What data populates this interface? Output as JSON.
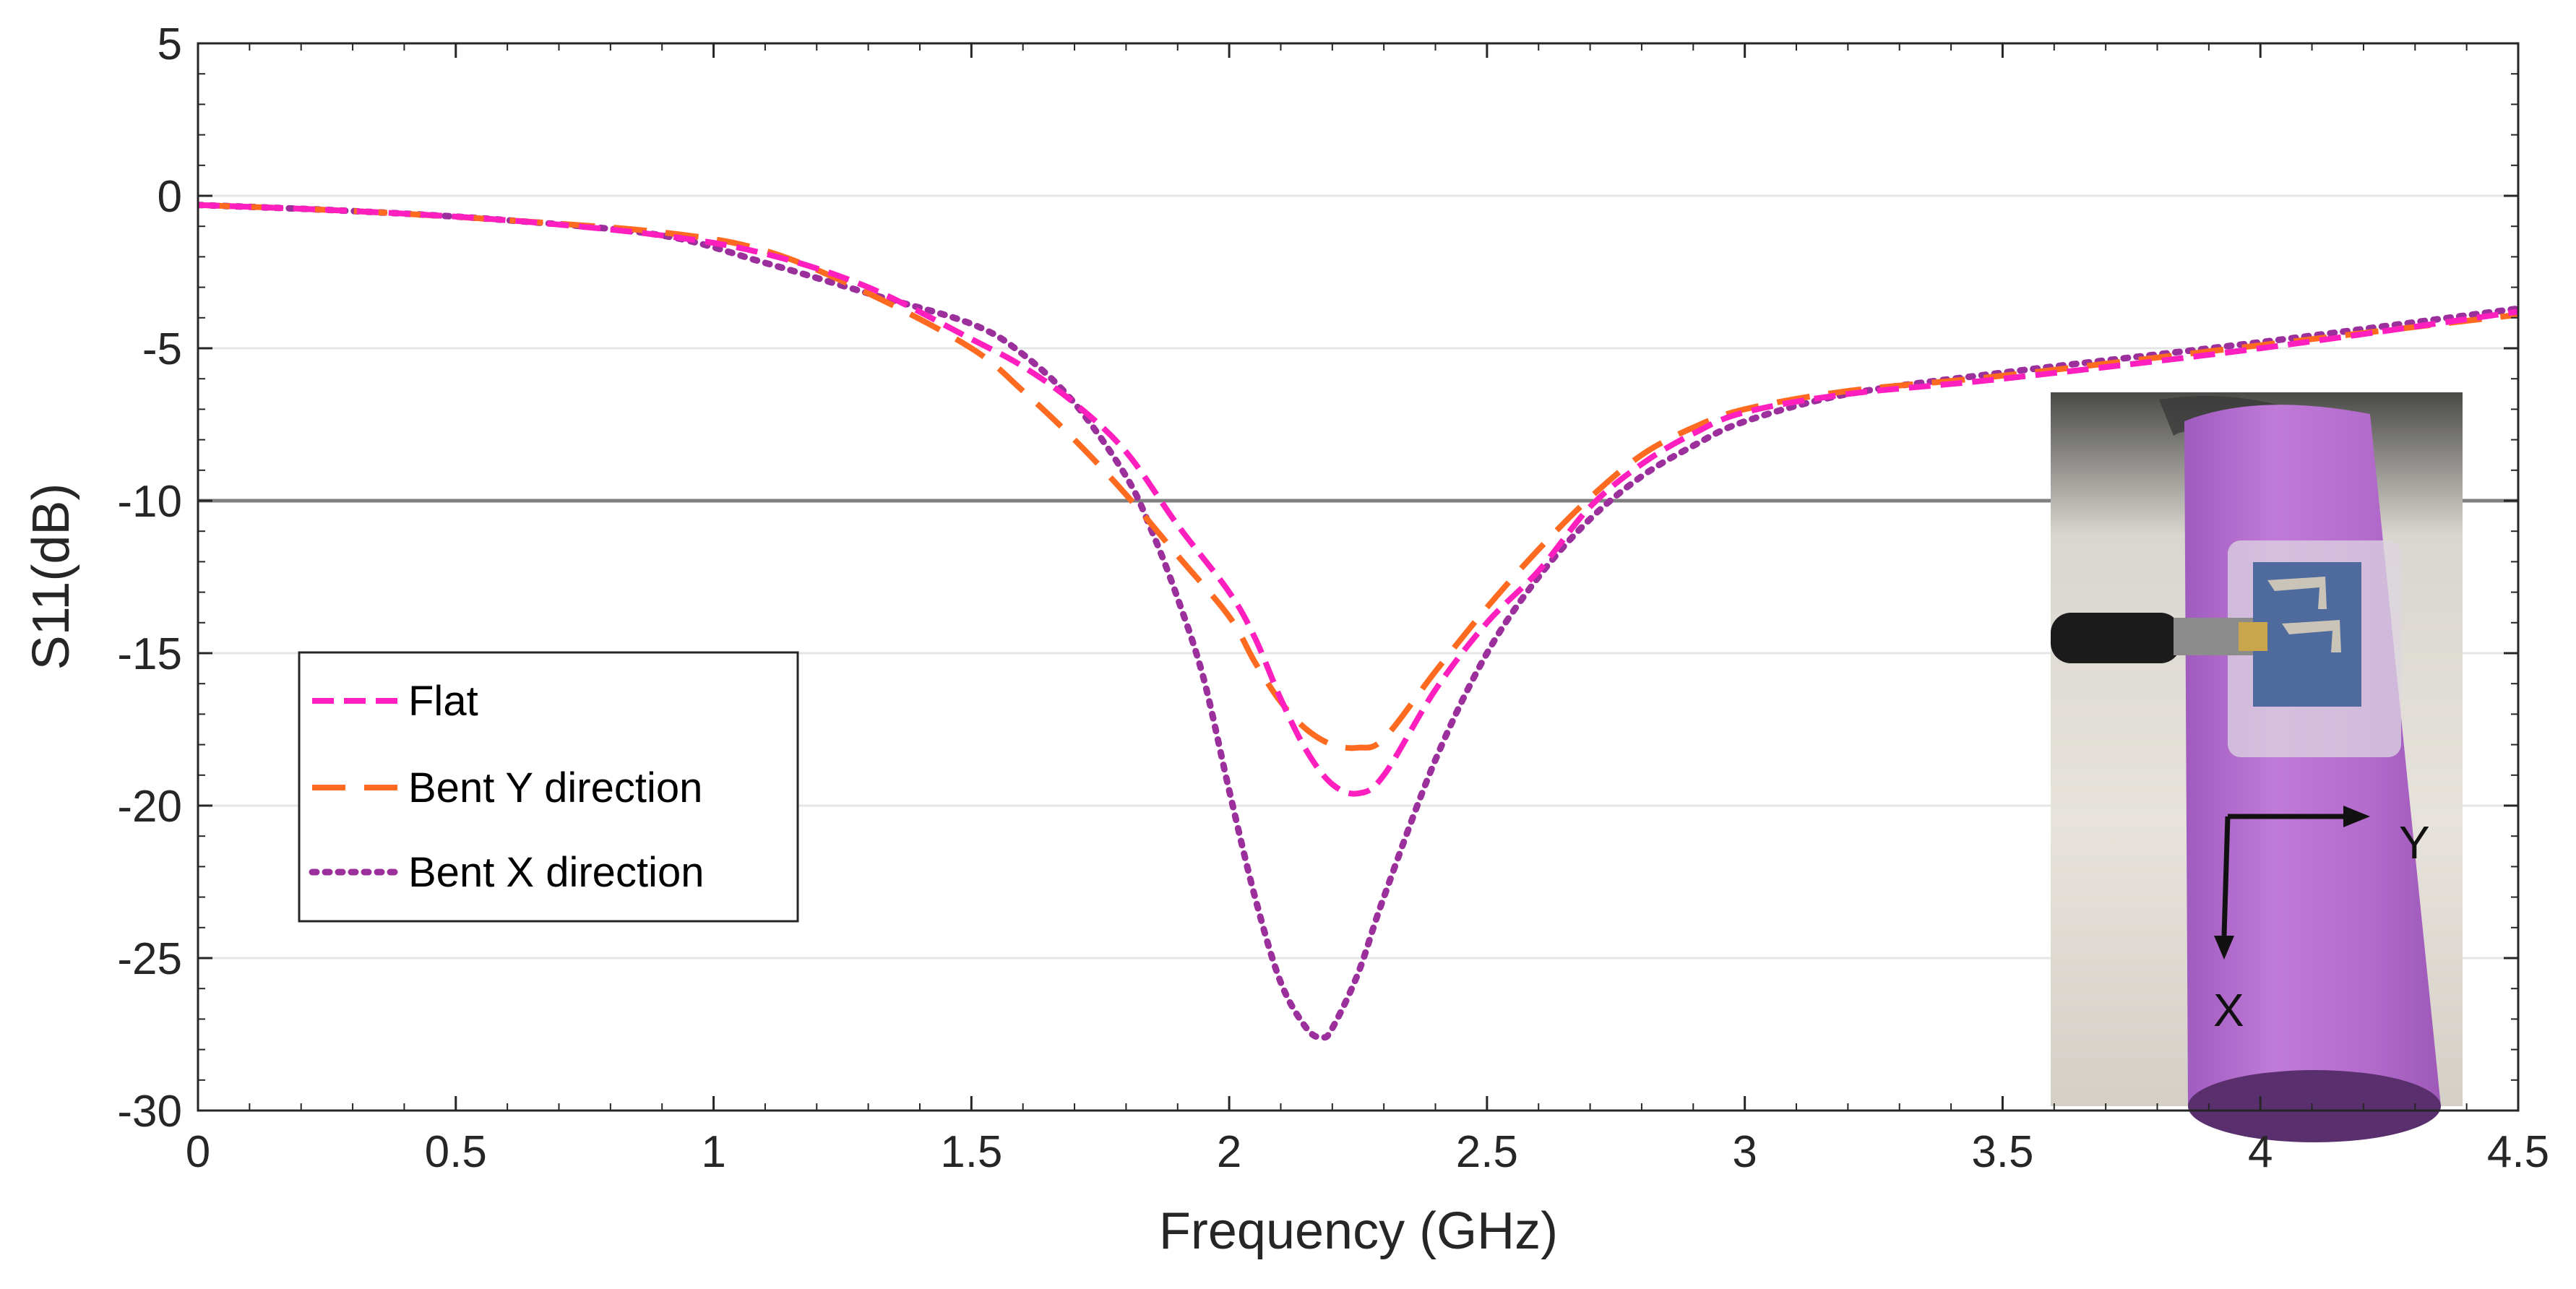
{
  "chart_data": {
    "type": "line",
    "title": "",
    "xlabel": "Frequency (GHz)",
    "ylabel": "S11(dB)",
    "xlim": [
      0,
      4.5
    ],
    "ylim": [
      -30,
      5
    ],
    "xticks": [
      0,
      0.5,
      1,
      1.5,
      2,
      2.5,
      3,
      3.5,
      4,
      4.5
    ],
    "xtick_labels": [
      "0",
      "0.5",
      "1",
      "1.5",
      "2",
      "2.5",
      "3",
      "3.5",
      "4",
      "4.5"
    ],
    "yticks": [
      5,
      0,
      -5,
      -10,
      -15,
      -20,
      -25,
      -30
    ],
    "ytick_labels": [
      "5",
      "0",
      "-5",
      "-10",
      "-15",
      "-20",
      "-25",
      "-30"
    ],
    "grid": "horizontal",
    "reference_line": {
      "y": -10,
      "color": "#808080"
    },
    "legend_position": "middle-left",
    "series": [
      {
        "name": "Flat",
        "color": "#ff1fbf",
        "style": "dashed",
        "x": [
          0,
          0.3,
          0.6,
          0.9,
          1.1,
          1.3,
          1.5,
          1.6,
          1.7,
          1.8,
          1.9,
          2.0,
          2.05,
          2.1,
          2.15,
          2.2,
          2.25,
          2.3,
          2.4,
          2.5,
          2.6,
          2.7,
          2.8,
          2.9,
          3.0,
          3.2,
          3.5,
          4.0,
          4.5
        ],
        "y": [
          -0.3,
          -0.5,
          -0.8,
          -1.3,
          -1.9,
          -3.0,
          -4.7,
          -5.6,
          -6.8,
          -8.4,
          -10.8,
          -13.0,
          -14.5,
          -16.5,
          -18.2,
          -19.3,
          -19.6,
          -19.0,
          -16.2,
          -14.0,
          -12.3,
          -10.2,
          -8.8,
          -7.8,
          -7.1,
          -6.5,
          -6.0,
          -5.0,
          -3.8
        ]
      },
      {
        "name": "Bent Y direction",
        "color": "#ff6a21",
        "style": "long-dashed",
        "x": [
          0,
          0.3,
          0.6,
          0.9,
          1.1,
          1.3,
          1.5,
          1.6,
          1.7,
          1.8,
          1.9,
          2.0,
          2.05,
          2.1,
          2.15,
          2.2,
          2.25,
          2.3,
          2.4,
          2.5,
          2.6,
          2.7,
          2.8,
          2.9,
          3.0,
          3.2,
          3.5,
          4.0,
          4.5
        ],
        "y": [
          -0.3,
          -0.5,
          -0.8,
          -1.2,
          -1.8,
          -3.2,
          -5.0,
          -6.4,
          -8.0,
          -9.8,
          -11.8,
          -13.8,
          -15.3,
          -16.6,
          -17.5,
          -18.0,
          -18.1,
          -17.8,
          -15.6,
          -13.5,
          -11.6,
          -9.9,
          -8.5,
          -7.6,
          -7.0,
          -6.4,
          -5.9,
          -4.9,
          -3.9
        ]
      },
      {
        "name": "Bent X direction",
        "color": "#9b2f9b",
        "style": "dotted",
        "x": [
          0,
          0.3,
          0.6,
          0.9,
          1.1,
          1.3,
          1.5,
          1.6,
          1.7,
          1.8,
          1.85,
          1.9,
          1.95,
          2.0,
          2.05,
          2.1,
          2.15,
          2.18,
          2.2,
          2.25,
          2.3,
          2.4,
          2.5,
          2.6,
          2.7,
          2.8,
          2.9,
          3.0,
          3.2,
          3.5,
          4.0,
          4.5
        ],
        "y": [
          -0.3,
          -0.5,
          -0.8,
          -1.3,
          -2.2,
          -3.2,
          -4.2,
          -5.2,
          -6.8,
          -9.2,
          -11.0,
          -13.2,
          -15.8,
          -19.5,
          -23.0,
          -25.8,
          -27.3,
          -27.6,
          -27.3,
          -25.5,
          -23.0,
          -18.5,
          -15.0,
          -12.5,
          -10.6,
          -9.2,
          -8.2,
          -7.4,
          -6.5,
          -5.8,
          -4.8,
          -3.7
        ]
      }
    ]
  },
  "inset": {
    "x_axis_label": "X",
    "y_axis_label": "Y"
  }
}
